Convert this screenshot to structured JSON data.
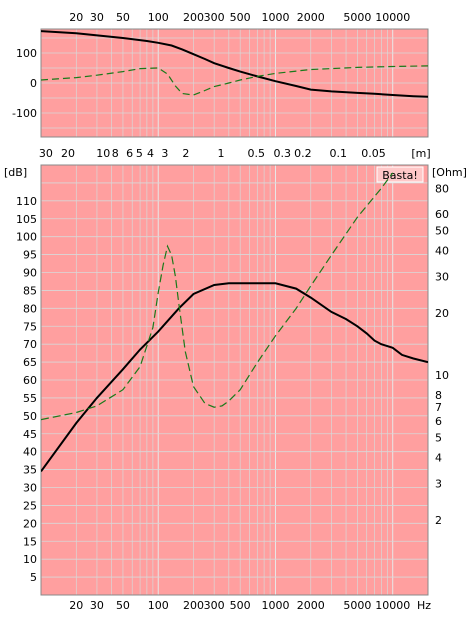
{
  "chart_data": [
    {
      "type": "line",
      "name": "phase",
      "x_scale": "log",
      "xlim": [
        10,
        20000
      ],
      "ylim": [
        -180,
        180
      ],
      "grid": true,
      "x_ticks": [
        {
          "v": 20,
          "label": "20"
        },
        {
          "v": 30,
          "label": "30"
        },
        {
          "v": 50,
          "label": "50"
        },
        {
          "v": 100,
          "label": "100"
        },
        {
          "v": 200,
          "label": "200"
        },
        {
          "v": 300,
          "label": "300"
        },
        {
          "v": 500,
          "label": "500"
        },
        {
          "v": 1000,
          "label": "1000"
        },
        {
          "v": 2000,
          "label": "2000"
        },
        {
          "v": 5000,
          "label": "5000"
        },
        {
          "v": 10000,
          "label": "10000"
        }
      ],
      "y_ticks": [
        {
          "v": 100,
          "label": "100"
        },
        {
          "v": 0,
          "label": "0"
        },
        {
          "v": -100,
          "label": "-100"
        }
      ],
      "series": [
        {
          "color": "#000000",
          "style": "solid",
          "x": [
            10,
            20,
            50,
            80,
            100,
            130,
            160,
            200,
            250,
            300,
            400,
            500,
            700,
            1000,
            1500,
            2000,
            3000,
            5000,
            7000,
            10000,
            15000,
            20000
          ],
          "y": [
            173,
            166,
            150,
            140,
            134,
            125,
            112,
            96,
            80,
            66,
            50,
            38,
            22,
            6,
            -10,
            -22,
            -28,
            -33,
            -36,
            -40,
            -44,
            -46
          ]
        },
        {
          "color": "#1a7a1a",
          "style": "dashed",
          "x": [
            10,
            20,
            30,
            50,
            70,
            100,
            120,
            140,
            160,
            200,
            250,
            300,
            400,
            500,
            700,
            1000,
            2000,
            5000,
            10000,
            20000
          ],
          "y": [
            10,
            18,
            26,
            38,
            48,
            50,
            30,
            -10,
            -35,
            -40,
            -25,
            -12,
            0,
            10,
            22,
            32,
            45,
            52,
            55,
            57
          ]
        }
      ]
    },
    {
      "type": "table",
      "name": "distance scale",
      "unit": "[m]",
      "ticks": [
        {
          "label": "30",
          "f": 11
        },
        {
          "label": "20",
          "f": 17
        },
        {
          "label": "10",
          "f": 34
        },
        {
          "label": "8",
          "f": 43
        },
        {
          "label": "6",
          "f": 57
        },
        {
          "label": "5",
          "f": 69
        },
        {
          "label": "4",
          "f": 86
        },
        {
          "label": "3",
          "f": 114
        },
        {
          "label": "2",
          "f": 172
        },
        {
          "label": "1",
          "f": 343
        },
        {
          "label": "0.5",
          "f": 686
        },
        {
          "label": "0.3",
          "f": 1143
        },
        {
          "label": "0.2",
          "f": 1715
        },
        {
          "label": "0.1",
          "f": 3430
        },
        {
          "label": "0.05",
          "f": 6860
        }
      ]
    },
    {
      "type": "line",
      "name": "spl-impedance",
      "x_scale": "log",
      "xlim": [
        10,
        20000
      ],
      "ylim": [
        0,
        120
      ],
      "ylabel": "[dB]",
      "y2label": "[Ohm]",
      "y2_scale": "log",
      "xlabel": "Hz",
      "grid": true,
      "annotation": "Basta!",
      "x_ticks": [
        {
          "v": 20,
          "label": "20"
        },
        {
          "v": 30,
          "label": "30"
        },
        {
          "v": 50,
          "label": "50"
        },
        {
          "v": 100,
          "label": "100"
        },
        {
          "v": 200,
          "label": "200"
        },
        {
          "v": 300,
          "label": "300"
        },
        {
          "v": 500,
          "label": "500"
        },
        {
          "v": 1000,
          "label": "1000"
        },
        {
          "v": 2000,
          "label": "2000"
        },
        {
          "v": 5000,
          "label": "5000"
        },
        {
          "v": 10000,
          "label": "10000"
        }
      ],
      "y_ticks": [
        5,
        10,
        15,
        20,
        25,
        30,
        35,
        40,
        45,
        50,
        55,
        60,
        65,
        70,
        75,
        80,
        85,
        90,
        95,
        100,
        105,
        110
      ],
      "y2_ticks": [
        {
          "v": 80,
          "label": "80"
        },
        {
          "v": 60,
          "label": "60"
        },
        {
          "v": 50,
          "label": "50"
        },
        {
          "v": 40,
          "label": "40"
        },
        {
          "v": 30,
          "label": "30"
        },
        {
          "v": 20,
          "label": "20"
        },
        {
          "v": 10,
          "label": "10"
        },
        {
          "v": 8,
          "label": "8"
        },
        {
          "v": 7,
          "label": "7"
        },
        {
          "v": 6,
          "label": "6"
        },
        {
          "v": 5,
          "label": "5"
        },
        {
          "v": 4,
          "label": "4"
        },
        {
          "v": 3,
          "label": "3"
        },
        {
          "v": 2,
          "label": "2"
        }
      ],
      "y2_calib": [
        {
          "v": 2,
          "dB": 21
        },
        {
          "v": 80,
          "dB": 113.5
        }
      ],
      "series": [
        {
          "color": "#000000",
          "style": "solid",
          "axis": "left",
          "x": [
            10,
            20,
            30,
            50,
            70,
            100,
            150,
            200,
            300,
            400,
            500,
            700,
            1000,
            1500,
            2000,
            3000,
            4000,
            5000,
            6000,
            7000,
            8000,
            10000,
            12000,
            15000,
            20000
          ],
          "y": [
            34.5,
            48,
            55,
            63,
            68.5,
            73.5,
            80,
            84,
            86.5,
            87,
            87,
            87,
            87,
            85.5,
            83,
            79,
            77,
            75,
            73,
            71,
            70,
            69,
            67,
            66,
            65
          ]
        },
        {
          "color": "#1a7a1a",
          "style": "dashed",
          "axis": "right",
          "x": [
            10,
            20,
            30,
            50,
            70,
            90,
            100,
            110,
            120,
            130,
            140,
            150,
            170,
            200,
            250,
            300,
            350,
            400,
            500,
            700,
            1000,
            1500,
            2000,
            3000,
            5000,
            8000,
            10000
          ],
          "y": [
            6.1,
            6.6,
            7.1,
            8.5,
            11,
            17,
            25,
            34,
            42,
            38,
            30,
            22,
            13,
            8.8,
            7.3,
            7.0,
            7.1,
            7.5,
            8.5,
            11.5,
            15.5,
            21,
            27,
            38,
            58,
            80,
            95
          ]
        }
      ]
    }
  ]
}
